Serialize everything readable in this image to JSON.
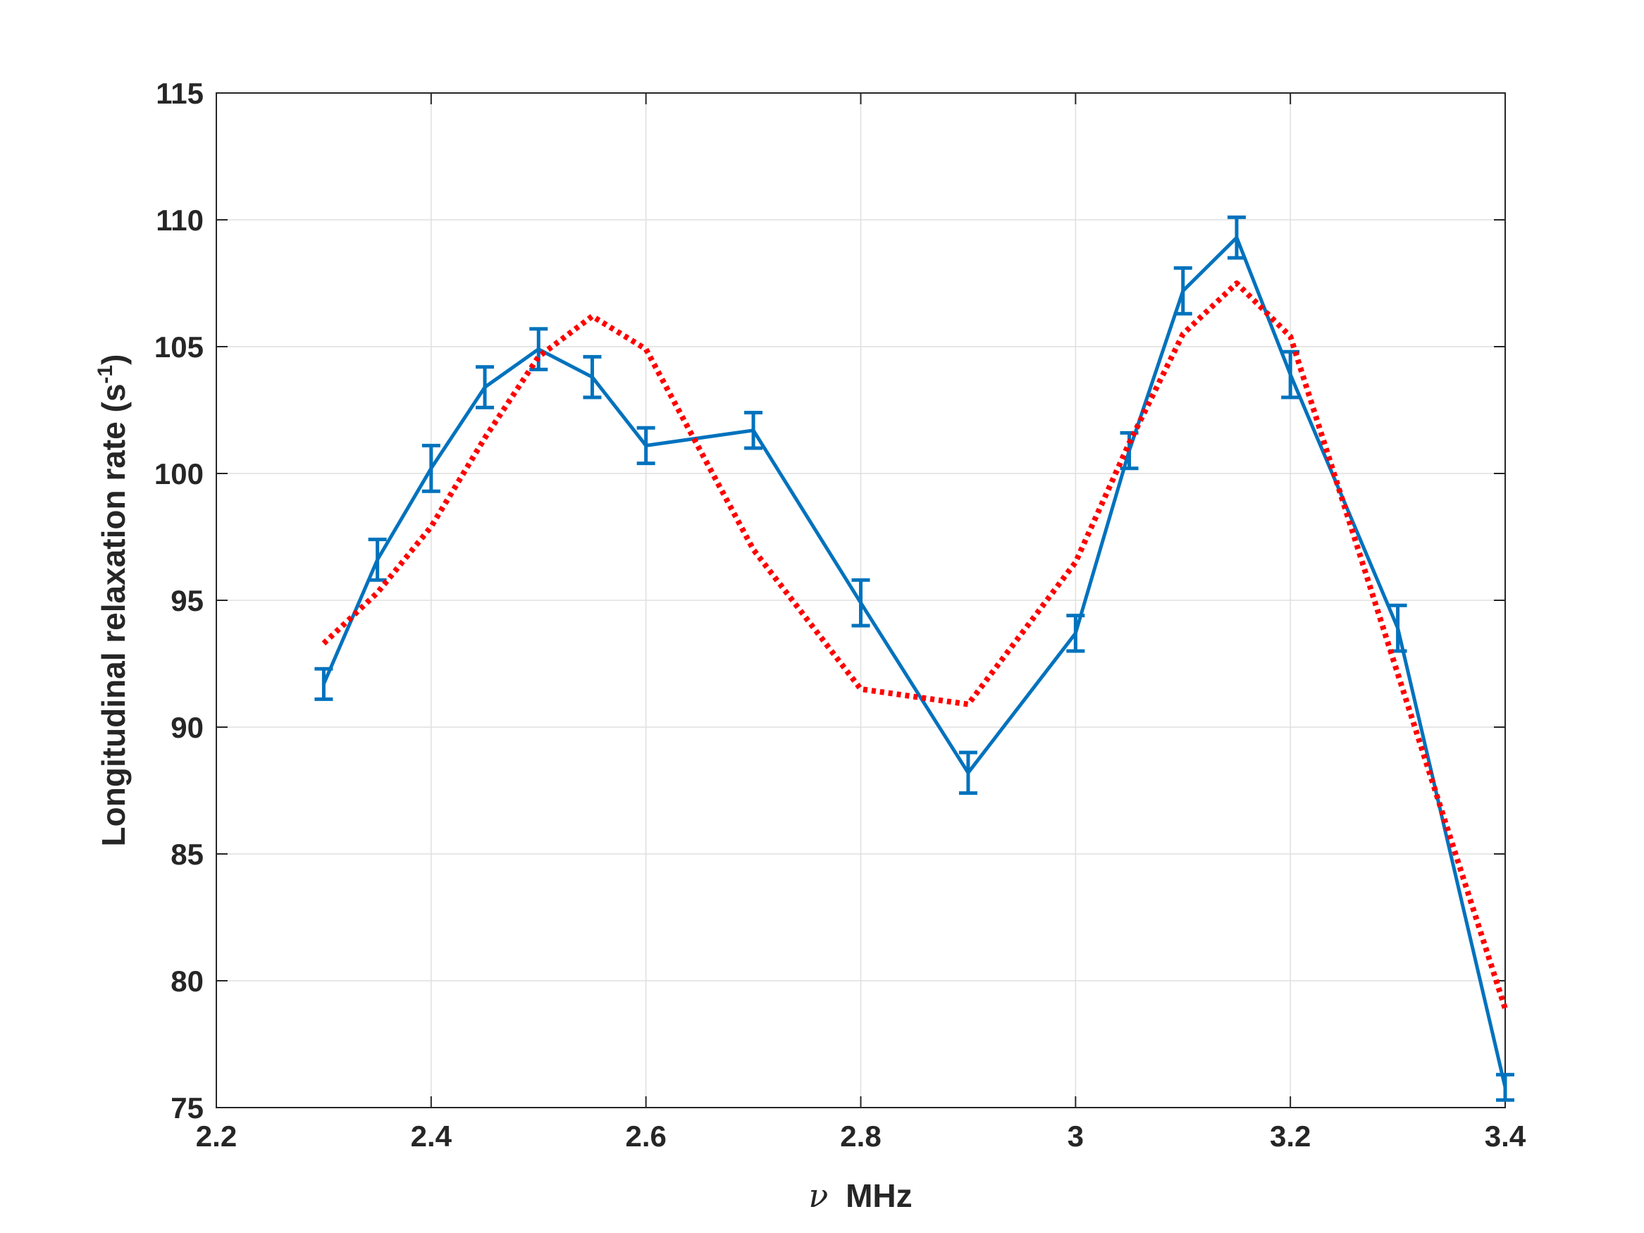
{
  "chart_data": {
    "type": "line",
    "xlabel_symbol": "ν",
    "xlabel_unit": "MHz",
    "ylabel_text": "Longitudinal relaxation rate (s",
    "ylabel_sup": "-1",
    "ylabel_close": ")",
    "xlim": [
      2.2,
      3.4
    ],
    "ylim": [
      75,
      115
    ],
    "xticks": [
      2.2,
      2.4,
      2.6,
      2.8,
      3.0,
      3.2,
      3.4
    ],
    "xtick_labels": [
      "2.2",
      "2.4",
      "2.6",
      "2.8",
      "3",
      "3.2",
      "3.4"
    ],
    "yticks": [
      75,
      80,
      85,
      90,
      95,
      100,
      105,
      110,
      115
    ],
    "ytick_labels": [
      "75",
      "80",
      "85",
      "90",
      "95",
      "100",
      "105",
      "110",
      "115"
    ],
    "grid": true,
    "series": [
      {
        "style": "solid-errorbar",
        "color": "#0072BD",
        "x": [
          2.3,
          2.35,
          2.4,
          2.45,
          2.5,
          2.55,
          2.6,
          2.7,
          2.8,
          2.9,
          3.0,
          3.05,
          3.1,
          3.15,
          3.2,
          3.3,
          3.4
        ],
        "y": [
          91.7,
          96.6,
          100.2,
          103.4,
          104.9,
          103.8,
          101.1,
          101.7,
          94.9,
          88.2,
          93.7,
          100.9,
          107.2,
          109.3,
          103.9,
          93.9,
          75.8
        ],
        "err": [
          0.6,
          0.8,
          0.9,
          0.8,
          0.8,
          0.8,
          0.7,
          0.7,
          0.9,
          0.8,
          0.7,
          0.7,
          0.9,
          0.8,
          0.9,
          0.9,
          0.5
        ]
      },
      {
        "style": "dotted",
        "color": "#FF0000",
        "x": [
          2.3,
          2.35,
          2.4,
          2.45,
          2.5,
          2.55,
          2.6,
          2.7,
          2.8,
          2.9,
          3.0,
          3.05,
          3.1,
          3.15,
          3.2,
          3.3,
          3.4
        ],
        "y": [
          93.3,
          95.3,
          97.9,
          101.4,
          104.6,
          106.2,
          104.9,
          97.0,
          91.5,
          90.9,
          96.5,
          101.2,
          105.5,
          107.5,
          105.4,
          92.1,
          78.9
        ]
      }
    ]
  }
}
